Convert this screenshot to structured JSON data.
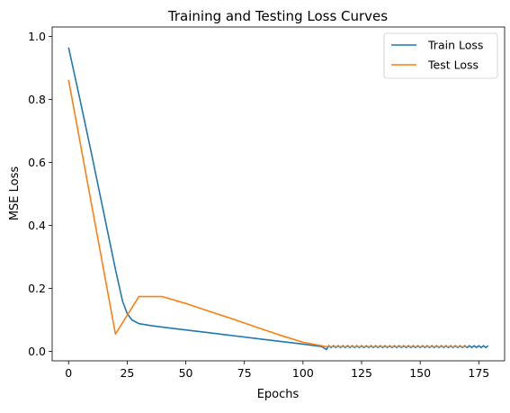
{
  "chart_data": {
    "type": "line",
    "title": "Training and Testing Loss Curves",
    "xlabel": "Epochs",
    "ylabel": "MSE Loss",
    "xlim": [
      -7,
      186
    ],
    "ylim": [
      -0.03,
      1.03
    ],
    "xticks": [
      0,
      25,
      50,
      75,
      100,
      125,
      150,
      175
    ],
    "yticks": [
      0.0,
      0.2,
      0.4,
      0.6,
      0.8,
      1.0
    ],
    "xtick_labels": [
      "0",
      "25",
      "50",
      "75",
      "100",
      "125",
      "150",
      "175"
    ],
    "ytick_labels": [
      "0.0",
      "0.2",
      "0.4",
      "0.6",
      "0.8",
      "1.0"
    ],
    "grid": false,
    "legend_position": "top-right",
    "series": [
      {
        "name": "Train Loss",
        "color": "#1f77b4",
        "x": [
          0,
          5,
          10,
          15,
          20,
          23,
          25,
          27,
          30,
          35,
          40,
          50,
          60,
          70,
          80,
          90,
          100,
          108,
          110,
          111,
          112,
          113,
          114,
          115,
          116,
          117,
          118,
          119,
          120,
          121,
          122,
          123,
          124,
          125,
          126,
          127,
          128,
          129,
          130,
          131,
          132,
          133,
          134,
          135,
          136,
          137,
          138,
          139,
          140,
          141,
          142,
          143,
          144,
          145,
          146,
          147,
          148,
          149,
          150,
          151,
          152,
          153,
          154,
          155,
          156,
          157,
          158,
          159,
          160,
          161,
          162,
          163,
          164,
          165,
          166,
          167,
          168,
          169,
          170,
          171,
          172,
          173,
          174,
          175,
          176,
          177,
          178,
          179
        ],
        "y": [
          0.965,
          0.795,
          0.62,
          0.44,
          0.26,
          0.16,
          0.12,
          0.1,
          0.088,
          0.082,
          0.077,
          0.068,
          0.059,
          0.05,
          0.041,
          0.032,
          0.023,
          0.015,
          0.006,
          0.018,
          0.012,
          0.018,
          0.012,
          0.018,
          0.012,
          0.018,
          0.012,
          0.018,
          0.012,
          0.018,
          0.012,
          0.018,
          0.012,
          0.018,
          0.012,
          0.018,
          0.012,
          0.018,
          0.012,
          0.018,
          0.012,
          0.018,
          0.012,
          0.018,
          0.012,
          0.018,
          0.012,
          0.018,
          0.012,
          0.018,
          0.012,
          0.018,
          0.012,
          0.018,
          0.012,
          0.018,
          0.012,
          0.018,
          0.012,
          0.018,
          0.012,
          0.018,
          0.012,
          0.018,
          0.012,
          0.018,
          0.012,
          0.018,
          0.012,
          0.018,
          0.012,
          0.018,
          0.012,
          0.018,
          0.012,
          0.018,
          0.012,
          0.018,
          0.012,
          0.018,
          0.012,
          0.018,
          0.012,
          0.018,
          0.012,
          0.018,
          0.012,
          0.018
        ]
      },
      {
        "name": "Test Loss",
        "color": "#ff7f0e",
        "x": [
          0,
          20,
          30,
          40,
          50,
          60,
          70,
          80,
          90,
          100,
          110,
          120,
          130,
          140,
          150,
          160,
          170
        ],
        "y": [
          0.862,
          0.055,
          0.174,
          0.174,
          0.152,
          0.127,
          0.103,
          0.077,
          0.052,
          0.029,
          0.015,
          0.015,
          0.015,
          0.015,
          0.015,
          0.015,
          0.015
        ]
      }
    ]
  }
}
